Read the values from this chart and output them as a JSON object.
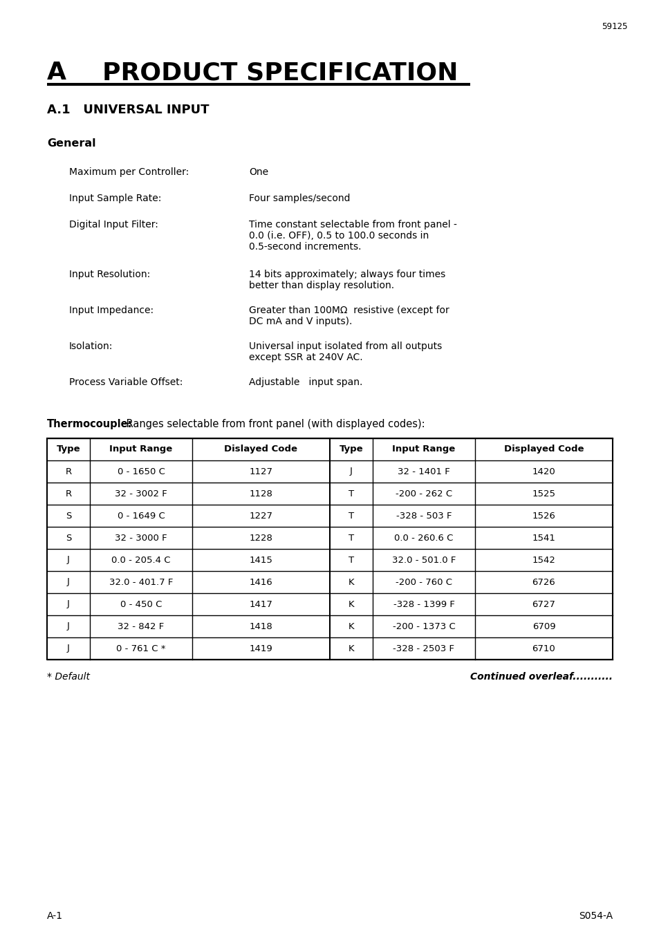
{
  "page_num_top": "59125",
  "main_title_A": "A",
  "main_title_rest": "PRODUCT SPECIFICATION",
  "section_title": "A.1   UNIVERSAL INPUT",
  "subsection_title": "General",
  "spec_items": [
    {
      "label": "Maximum per Controller:",
      "value": "One"
    },
    {
      "label": "Input Sample Rate:",
      "value": "Four samples/second"
    },
    {
      "label": "Digital Input Filter:",
      "value_lines": [
        "Time constant selectable from front panel -",
        "0.0 (i.e. OFF), 0.5 to 100.0 seconds in",
        "0.5-second increments."
      ]
    },
    {
      "label": "Input Resolution:",
      "value_lines": [
        "14 bits approximately; always four times",
        "better than display resolution."
      ]
    },
    {
      "label": "Input Impedance:",
      "value_lines": [
        "Greater than 100MΩ  resistive (except for",
        "DC mA and V inputs)."
      ]
    },
    {
      "label": "Isolation:",
      "value_lines": [
        "Universal input isolated from all outputs",
        "except SSR at 240V AC."
      ]
    },
    {
      "label": "Process Variable Offset:",
      "value_lines": [
        "Adjustable   input span."
      ]
    }
  ],
  "thermocouple_bold": "Thermocouple:",
  "thermocouple_normal": " Ranges selectable from front panel (with displayed codes):",
  "table_headers_left": [
    "Type",
    "Input Range",
    "Dislayed Code"
  ],
  "table_headers_right": [
    "Type",
    "Input Range",
    "Displayed Code"
  ],
  "table_data_left": [
    [
      "R",
      "0 - 1650 C",
      "1127"
    ],
    [
      "R",
      "32 - 3002 F",
      "1128"
    ],
    [
      "S",
      "0 - 1649 C",
      "1227"
    ],
    [
      "S",
      "32 - 3000 F",
      "1228"
    ],
    [
      "J",
      "0.0 - 205.4 C",
      "1415"
    ],
    [
      "J",
      "32.0 - 401.7 F",
      "1416"
    ],
    [
      "J",
      "0 - 450 C",
      "1417"
    ],
    [
      "J",
      "32 - 842 F",
      "1418"
    ],
    [
      "J",
      "0 - 761 C *",
      "1419"
    ]
  ],
  "table_data_right": [
    [
      "J",
      "32 - 1401 F",
      "1420"
    ],
    [
      "T",
      "-200 - 262 C",
      "1525"
    ],
    [
      "T",
      "-328 - 503 F",
      "1526"
    ],
    [
      "T",
      "0.0 - 260.6 C",
      "1541"
    ],
    [
      "T",
      "32.0 - 501.0 F",
      "1542"
    ],
    [
      "K",
      "-200 - 760 C",
      "6726"
    ],
    [
      "K",
      "-328 - 1399 F",
      "6727"
    ],
    [
      "K",
      "-200 - 1373 C",
      "6709"
    ],
    [
      "K",
      "-328 - 2503 F",
      "6710"
    ]
  ],
  "footer_left": "* Default",
  "footer_right": "Continued overleaf...........",
  "page_footer_left": "A-1",
  "page_footer_right": "S054-A",
  "bg": "#ffffff"
}
